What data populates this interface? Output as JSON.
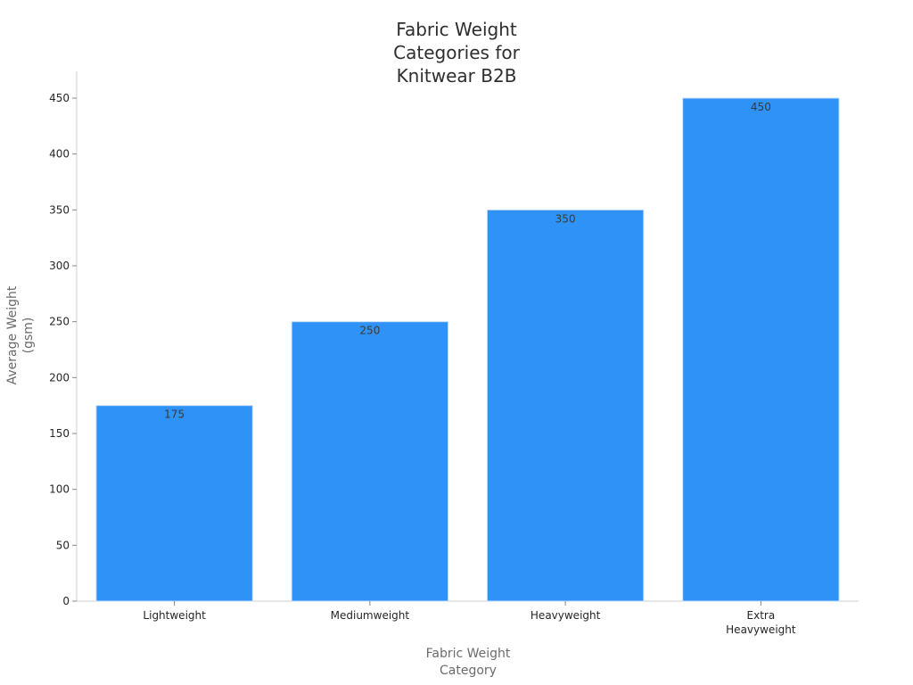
{
  "chart_data": {
    "type": "bar",
    "title": [
      "Fabric Weight",
      "Categories for",
      "Knitwear B2B"
    ],
    "xlabel": [
      "Fabric Weight",
      "Category"
    ],
    "ylabel": [
      "Average Weight",
      "(gsm)"
    ],
    "categories": [
      [
        "Lightweight"
      ],
      [
        "Mediumweight"
      ],
      [
        "Heavyweight"
      ],
      [
        "Extra",
        "Heavyweight"
      ]
    ],
    "values": [
      175,
      250,
      350,
      450
    ],
    "data_labels": [
      "175",
      "250",
      "350",
      "450"
    ],
    "ylim": [
      0,
      450
    ],
    "yticks": [
      0,
      50,
      100,
      150,
      200,
      250,
      300,
      350,
      400,
      450
    ],
    "grid": false,
    "bar_color": "#2f92f7",
    "bar_edge_color": "#c8dff7"
  }
}
